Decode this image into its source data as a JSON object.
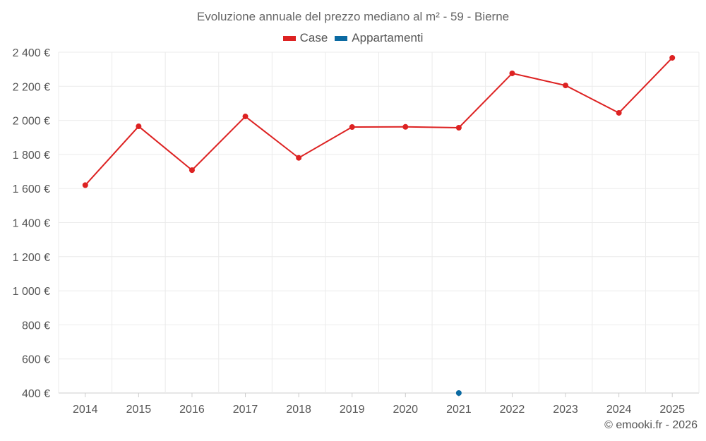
{
  "chart_data": {
    "type": "line",
    "title": "Evoluzione annuale del prezzo mediano al m² - 59 - Bierne",
    "categories": [
      "2014",
      "2015",
      "2016",
      "2017",
      "2018",
      "2019",
      "2020",
      "2021",
      "2022",
      "2023",
      "2024",
      "2025"
    ],
    "series": [
      {
        "name": "Case",
        "color": "#dd2222",
        "values": [
          1620,
          1965,
          1708,
          2023,
          1780,
          1961,
          1962,
          1957,
          2276,
          2205,
          2044,
          2367
        ]
      },
      {
        "name": "Appartamenti",
        "color": "#0b6aa2",
        "values": [
          null,
          null,
          null,
          null,
          null,
          null,
          null,
          400,
          null,
          null,
          null,
          null
        ]
      }
    ],
    "ylim": [
      400,
      2400
    ],
    "yticks": [
      400,
      600,
      800,
      1000,
      1200,
      1400,
      1600,
      1800,
      2000,
      2200,
      2400
    ],
    "ytick_labels": [
      "400 €",
      "600 €",
      "800 €",
      "1 000 €",
      "1 200 €",
      "1 400 €",
      "1 600 €",
      "1 800 €",
      "2 000 €",
      "2 200 €",
      "2 400 €"
    ],
    "xlabel": "",
    "ylabel": "",
    "grid": true,
    "legend": "top-center"
  },
  "credit": "© emooki.fr - 2026"
}
